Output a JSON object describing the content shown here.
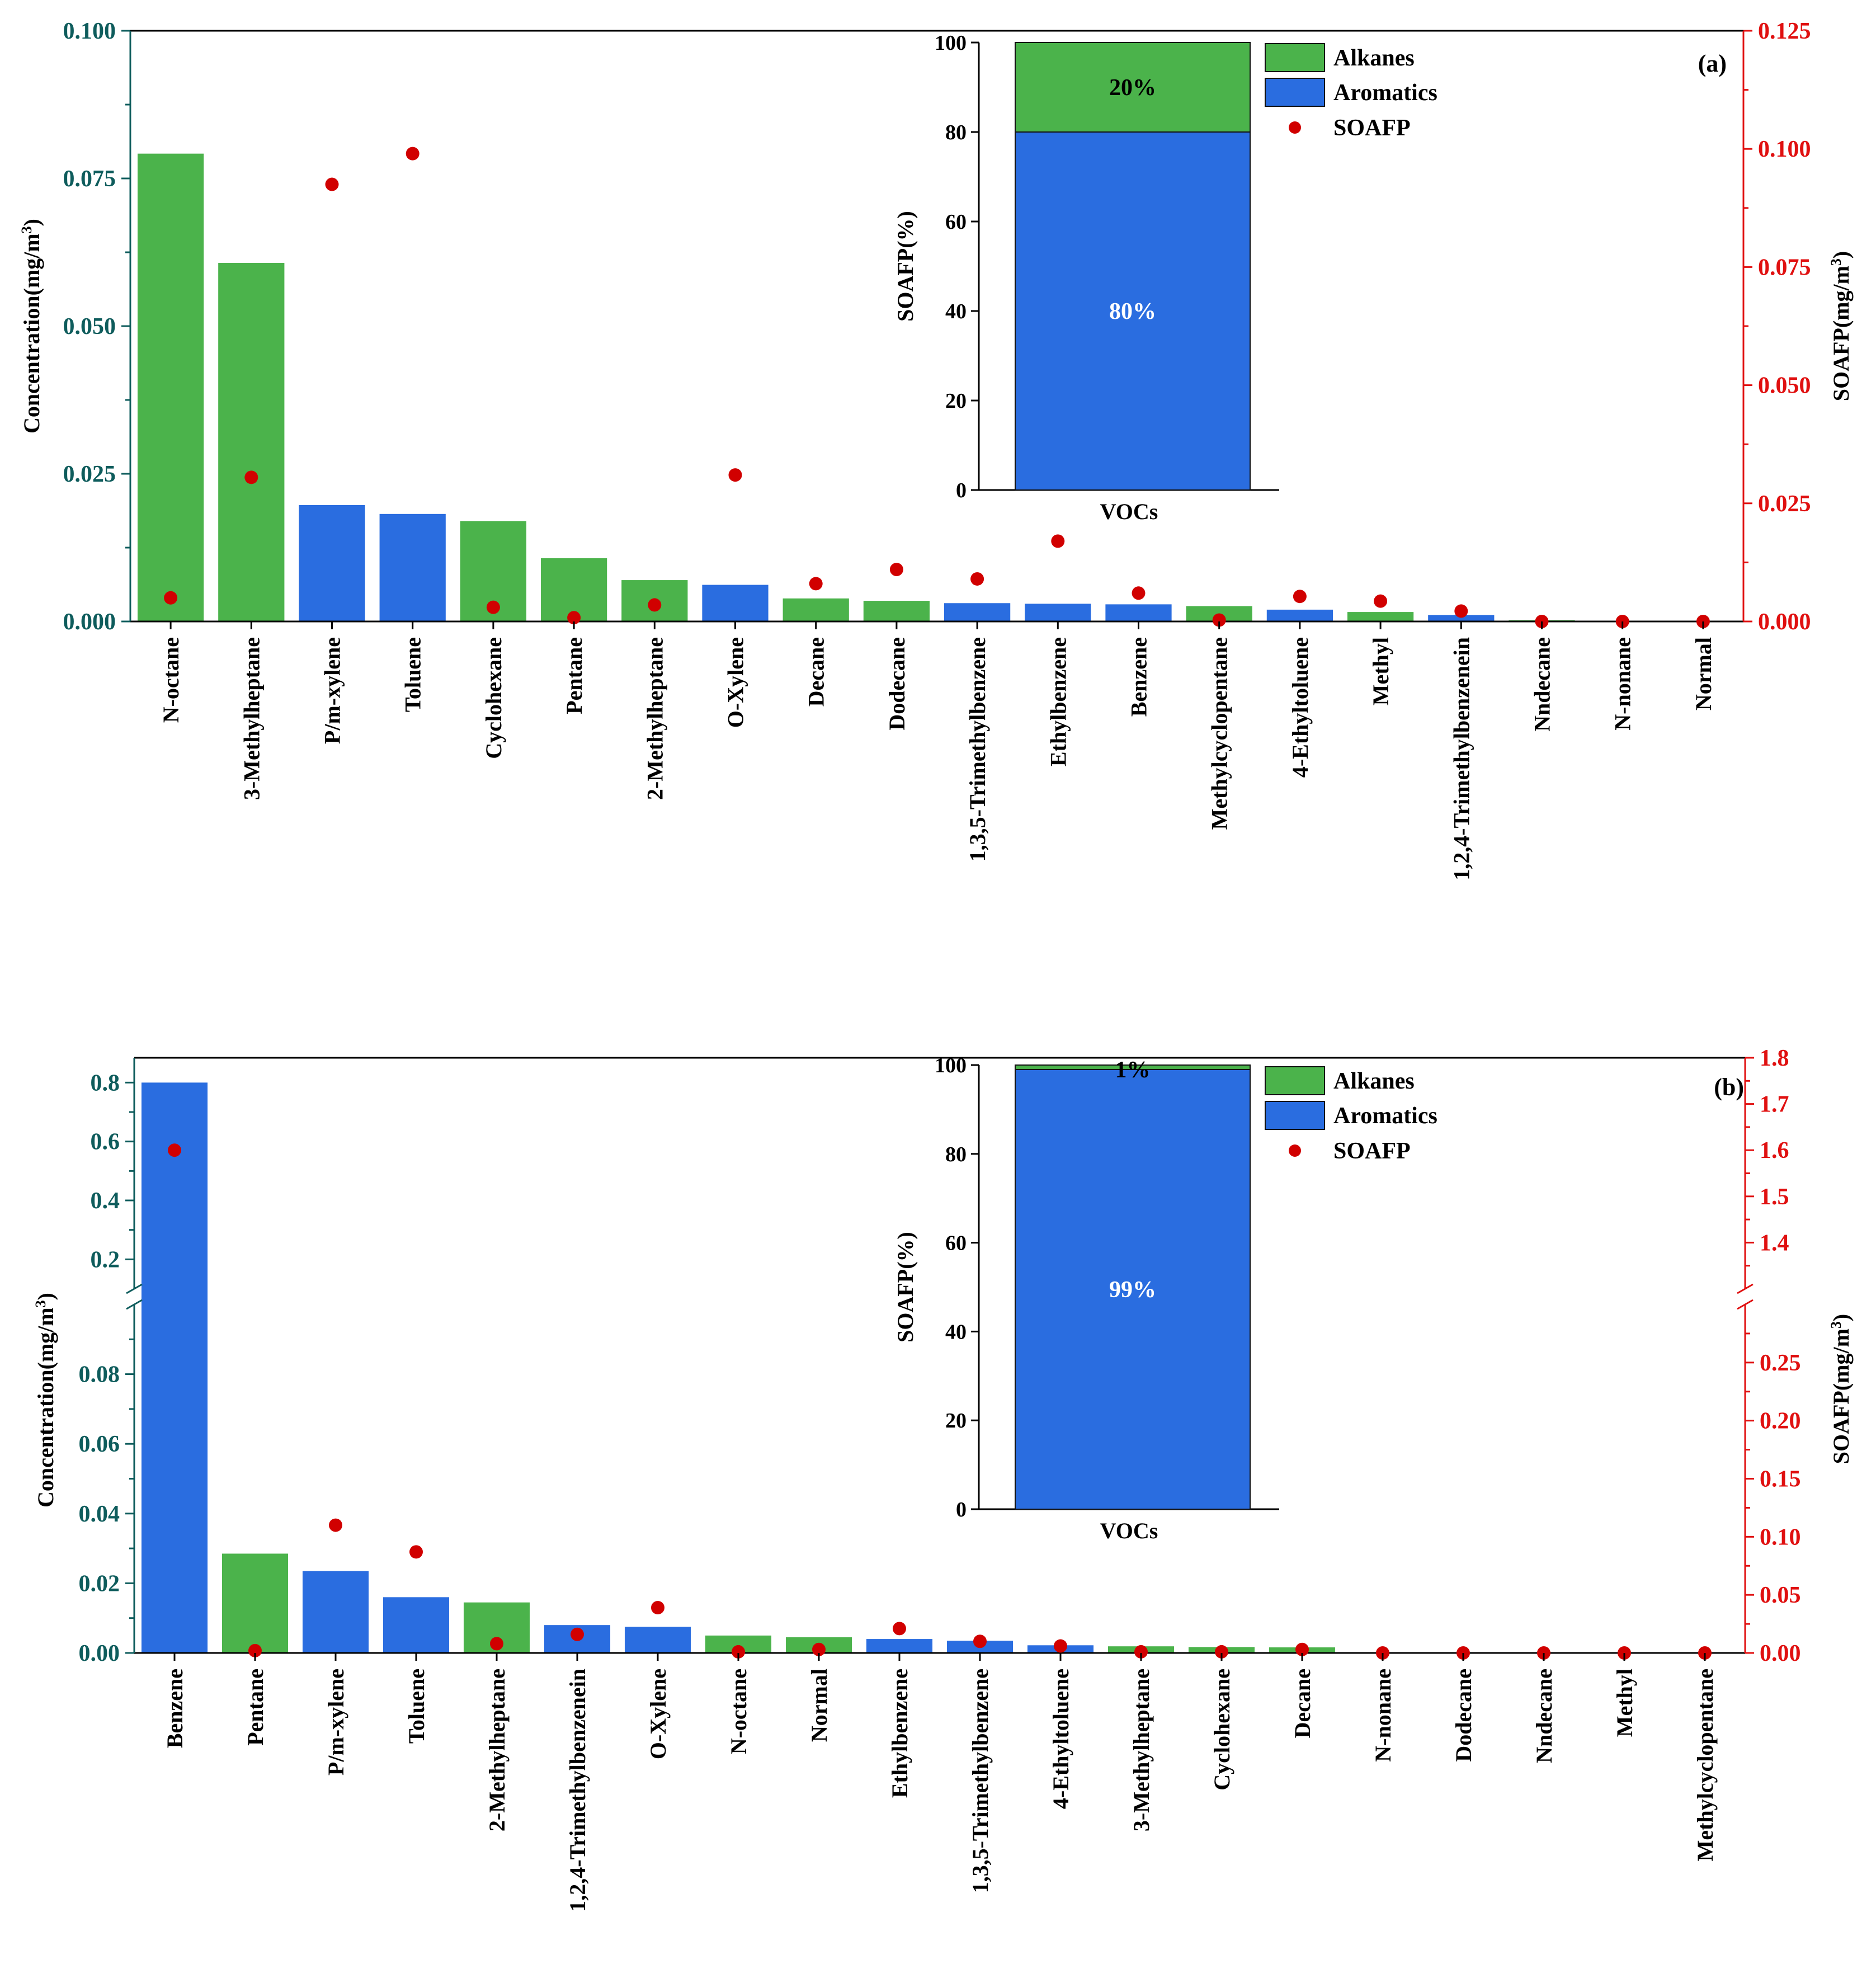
{
  "colors": {
    "alkanes": "#4bb34b",
    "aromatics": "#2a6de0",
    "soafp": "#d10000",
    "left_axis": "#0e5c5c",
    "right_axis": "#e01010",
    "frame": "#000000",
    "inset_text": "#ffffff"
  },
  "chart_data": [
    {
      "panel": "(a)",
      "type": "bar",
      "ylabel": "Concentration(mg/m³)",
      "y2label": "SOAFP(mg/m³)",
      "ylim": [
        0,
        0.1
      ],
      "yticks": [
        "0.000",
        "0.025",
        "0.050",
        "0.075",
        "0.100"
      ],
      "y2lim": [
        0,
        0.125
      ],
      "y2ticks": [
        "0.000",
        "0.025",
        "0.050",
        "0.075",
        "0.100",
        "0.125"
      ],
      "categories": [
        "N-octane",
        "3-Methylheptane",
        "P/m-xylene",
        "Toluene",
        "Cyclohexane",
        "Pentane",
        "2-Methylheptane",
        "O-Xylene",
        "Decane",
        "Dodecane",
        "1,3,5-Trimethylbenzene",
        "Ethylbenzene",
        "Benzene",
        "Methylcyclopentane",
        "4-Ethyltoluene",
        "Methyl",
        "1,2,4-Trimethylbenzenein",
        "Nndecane",
        "N-nonane",
        "Normal"
      ],
      "groups": [
        "Alkanes",
        "Alkanes",
        "Aromatics",
        "Aromatics",
        "Alkanes",
        "Alkanes",
        "Alkanes",
        "Aromatics",
        "Alkanes",
        "Alkanes",
        "Aromatics",
        "Aromatics",
        "Aromatics",
        "Alkanes",
        "Aromatics",
        "Alkanes",
        "Aromatics",
        "Alkanes",
        "Alkanes",
        "Alkanes"
      ],
      "concentration": [
        0.0792,
        0.0607,
        0.0197,
        0.0182,
        0.017,
        0.0107,
        0.007,
        0.0062,
        0.0039,
        0.0035,
        0.0031,
        0.003,
        0.0029,
        0.0026,
        0.002,
        0.0016,
        0.0011,
        0.0002,
        0.0001,
        0.0001
      ],
      "soafp": [
        0.005,
        0.0305,
        0.0925,
        0.099,
        0.003,
        0.0008,
        0.0035,
        0.031,
        0.008,
        0.011,
        0.009,
        0.017,
        0.006,
        0.0003,
        0.0053,
        0.0043,
        0.0022,
        0.0,
        0.0,
        0.0
      ],
      "inset": {
        "ylabel": "SOAFP(%)",
        "xlabel": "VOCs",
        "ylim": [
          0,
          100
        ],
        "yticks": [
          "0",
          "20",
          "40",
          "60",
          "80",
          "100"
        ],
        "aromatics_pct": 80,
        "alkanes_pct": 20,
        "aromatics_label": "80%",
        "alkanes_label": "20%"
      },
      "legend": [
        "Alkanes",
        "Aromatics",
        "SOAFP"
      ]
    },
    {
      "panel": "(b)",
      "type": "bar",
      "ylabel": "Concentration(mg/m³)",
      "y2label": "SOAFP(mg/m³)",
      "broken_axis": true,
      "ylim_lower": [
        0,
        0.1
      ],
      "yticks_lower": [
        "0.00",
        "0.02",
        "0.04",
        "0.06",
        "0.08"
      ],
      "ylim_upper": [
        0.1,
        0.85
      ],
      "yticks_upper": [
        "0.2",
        "0.4",
        "0.6",
        "0.8"
      ],
      "y2lim_lower": [
        0,
        0.3
      ],
      "y2ticks_lower": [
        "0.00",
        "0.05",
        "0.10",
        "0.15",
        "0.20",
        "0.25"
      ],
      "y2lim_upper": [
        1.3,
        1.8
      ],
      "y2ticks_upper": [
        "1.4",
        "1.5",
        "1.6",
        "1.7",
        "1.8"
      ],
      "categories": [
        "Benzene",
        "Pentane",
        "P/m-xylene",
        "Toluene",
        "2-Methylheptane",
        "1,2,4-Trimethylbenzenein",
        "O-Xylene",
        "N-octane",
        "Normal",
        "Ethylbenzene",
        "1,3,5-Trimethylbenzene",
        "4-Ethyltoluene",
        "3-Methylheptane",
        "Cyclohexane",
        "Decane",
        "N-nonane",
        "Dodecane",
        "Nndecane",
        "Methyl",
        "Methylcyclopentane"
      ],
      "groups": [
        "Aromatics",
        "Alkanes",
        "Aromatics",
        "Aromatics",
        "Alkanes",
        "Aromatics",
        "Aromatics",
        "Alkanes",
        "Alkanes",
        "Aromatics",
        "Aromatics",
        "Aromatics",
        "Alkanes",
        "Alkanes",
        "Alkanes",
        "Alkanes",
        "Alkanes",
        "Alkanes",
        "Alkanes",
        "Alkanes"
      ],
      "concentration": [
        0.8,
        0.0285,
        0.0235,
        0.016,
        0.0145,
        0.008,
        0.0075,
        0.005,
        0.0045,
        0.004,
        0.0035,
        0.0022,
        0.0019,
        0.0017,
        0.0016,
        0.0001,
        0.0001,
        0.0001,
        0.0001,
        0.0001
      ],
      "soafp": [
        1.6,
        0.002,
        0.11,
        0.087,
        0.008,
        0.016,
        0.039,
        0.001,
        0.003,
        0.021,
        0.01,
        0.006,
        0.001,
        0.001,
        0.003,
        0.0,
        0.0,
        0.0,
        0.0,
        0.0
      ],
      "inset": {
        "ylabel": "SOAFP(%)",
        "xlabel": "VOCs",
        "ylim": [
          0,
          100
        ],
        "yticks": [
          "0",
          "20",
          "40",
          "60",
          "80",
          "100"
        ],
        "aromatics_pct": 99,
        "alkanes_pct": 1,
        "aromatics_label": "99%",
        "alkanes_label": "1%"
      },
      "legend": [
        "Alkanes",
        "Aromatics",
        "SOAFP"
      ]
    }
  ]
}
